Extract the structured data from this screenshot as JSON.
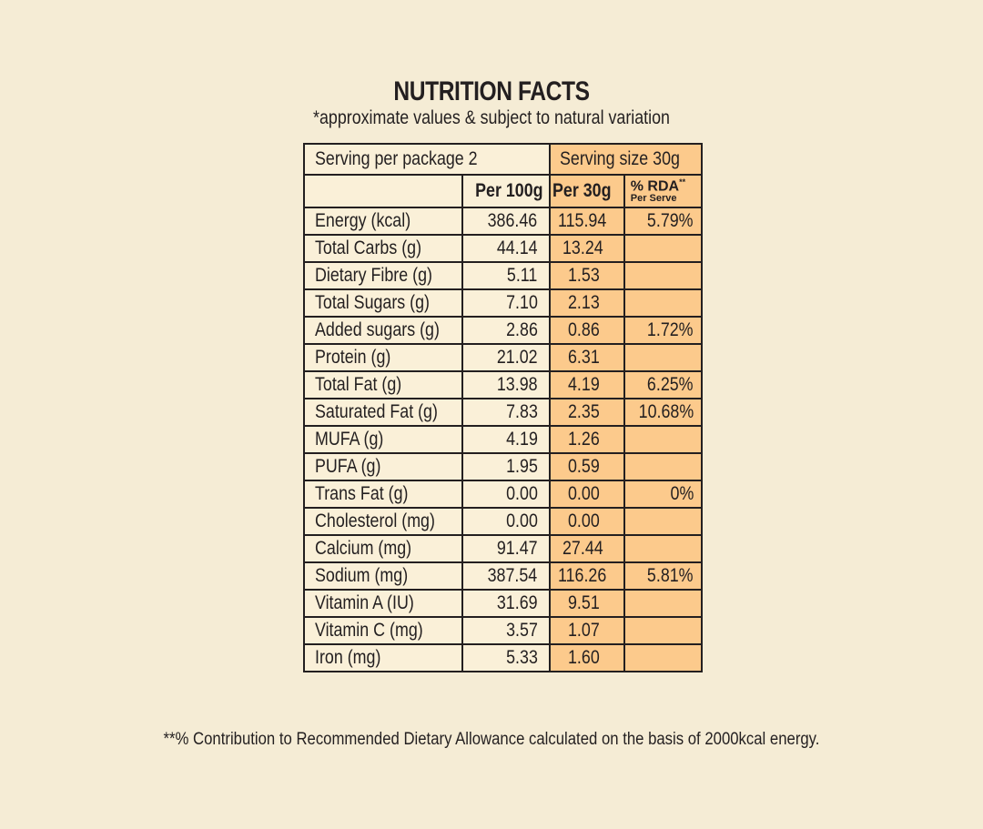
{
  "title": "NUTRITION FACTS",
  "subtitle": "*approximate values & subject to natural variation",
  "serving_per_package": "Serving per package 2",
  "serving_size": "Serving size 30g",
  "columns": {
    "per100": "Per 100g",
    "per30": "Per 30g",
    "rda": "% RDA",
    "rda_mark": "**",
    "rda_sub": "Per Serve"
  },
  "rows": [
    {
      "label": "Energy (kcal)",
      "per100": "386.46",
      "per30": "115.94",
      "rda": "5.79%"
    },
    {
      "label": "Total Carbs (g)",
      "per100": "44.14",
      "per30": "13.24",
      "rda": ""
    },
    {
      "label": "Dietary Fibre (g)",
      "per100": "5.11",
      "per30": "1.53",
      "rda": ""
    },
    {
      "label": "Total Sugars (g)",
      "per100": "7.10",
      "per30": "2.13",
      "rda": ""
    },
    {
      "label": "Added sugars (g)",
      "per100": "2.86",
      "per30": "0.86",
      "rda": "1.72%"
    },
    {
      "label": "Protein (g)",
      "per100": "21.02",
      "per30": "6.31",
      "rda": ""
    },
    {
      "label": "Total Fat (g)",
      "per100": "13.98",
      "per30": "4.19",
      "rda": "6.25%"
    },
    {
      "label": "Saturated Fat (g)",
      "per100": "7.83",
      "per30": "2.35",
      "rda": "10.68%"
    },
    {
      "label": "MUFA (g)",
      "per100": "4.19",
      "per30": "1.26",
      "rda": ""
    },
    {
      "label": "PUFA (g)",
      "per100": "1.95",
      "per30": "0.59",
      "rda": ""
    },
    {
      "label": "Trans Fat (g)",
      "per100": "0.00",
      "per30": "0.00",
      "rda": "0%"
    },
    {
      "label": "Cholesterol (mg)",
      "per100": "0.00",
      "per30": "0.00",
      "rda": ""
    },
    {
      "label": "Calcium (mg)",
      "per100": "91.47",
      "per30": "27.44",
      "rda": ""
    },
    {
      "label": "Sodium (mg)",
      "per100": "387.54",
      "per30": "116.26",
      "rda": "5.81%"
    },
    {
      "label": "Vitamin A (IU)",
      "per100": "31.69",
      "per30": "9.51",
      "rda": ""
    },
    {
      "label": "Vitamin C (mg)",
      "per100": "3.57",
      "per30": "1.07",
      "rda": ""
    },
    {
      "label": "Iron (mg)",
      "per100": "5.33",
      "per30": "1.60",
      "rda": ""
    }
  ],
  "footnote": "**% Contribution to Recommended Dietary Allowance calculated on the basis of 2000kcal energy.",
  "colors": {
    "background": "#f5ecd5",
    "cream_cell": "#faf0d8",
    "orange_cell": "#fcca8c",
    "ink": "#231f20"
  }
}
